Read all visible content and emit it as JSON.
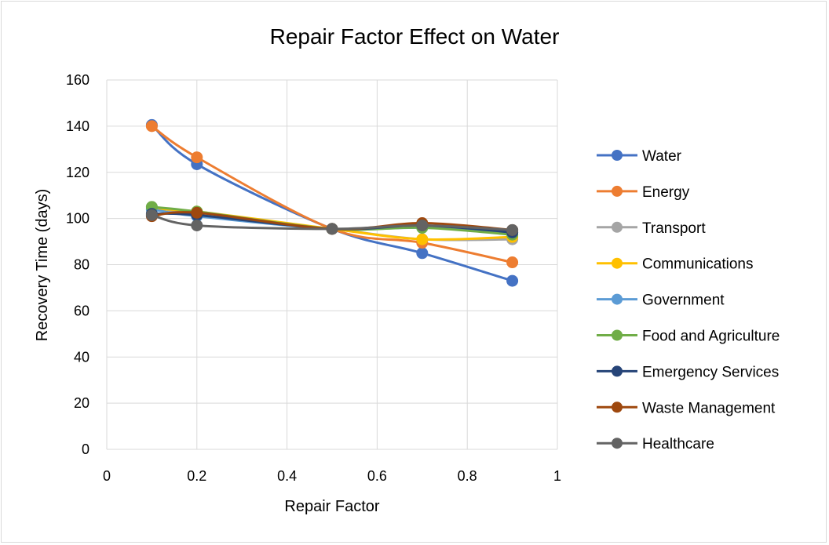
{
  "chart_data": {
    "type": "scatter",
    "title": "Repair Factor Effect on Water",
    "xlabel": "Repair Factor",
    "ylabel": "Recovery Time (days)",
    "xlim": [
      0,
      1
    ],
    "ylim": [
      0,
      160
    ],
    "x_ticks": [
      "0",
      "0.2",
      "0.4",
      "0.6",
      "0.8",
      "1"
    ],
    "y_ticks": [
      "0",
      "20",
      "40",
      "60",
      "80",
      "100",
      "120",
      "140",
      "160"
    ],
    "grid": true,
    "legend_position": "right",
    "x": [
      0.1,
      0.2,
      0.5,
      0.7,
      0.9
    ],
    "series": [
      {
        "name": "Water",
        "color": "#4472C4",
        "values": [
          140.5,
          123.5,
          95.5,
          85,
          73
        ]
      },
      {
        "name": "Energy",
        "color": "#ED7D31",
        "values": [
          140,
          126.5,
          95.5,
          89.5,
          81
        ]
      },
      {
        "name": "Transport",
        "color": "#A5A5A5",
        "values": [
          105,
          102,
          95.5,
          91,
          91
        ]
      },
      {
        "name": "Communications",
        "color": "#FFC000",
        "values": [
          104,
          103,
          95.5,
          91,
          92
        ]
      },
      {
        "name": "Government",
        "color": "#5B9BD5",
        "values": [
          104,
          101,
          95.5,
          96,
          94
        ]
      },
      {
        "name": "Food and Agriculture",
        "color": "#70AD47",
        "values": [
          105,
          103,
          95.5,
          96,
          93
        ]
      },
      {
        "name": "Emergency Services",
        "color": "#264478",
        "values": [
          102,
          101.5,
          95.5,
          97,
          94
        ]
      },
      {
        "name": "Waste Management",
        "color": "#9E480E",
        "values": [
          101,
          102.5,
          95.5,
          98,
          95
        ]
      },
      {
        "name": "Healthcare",
        "color": "#636363",
        "values": [
          101.5,
          97,
          95.5,
          97,
          95
        ]
      }
    ]
  }
}
